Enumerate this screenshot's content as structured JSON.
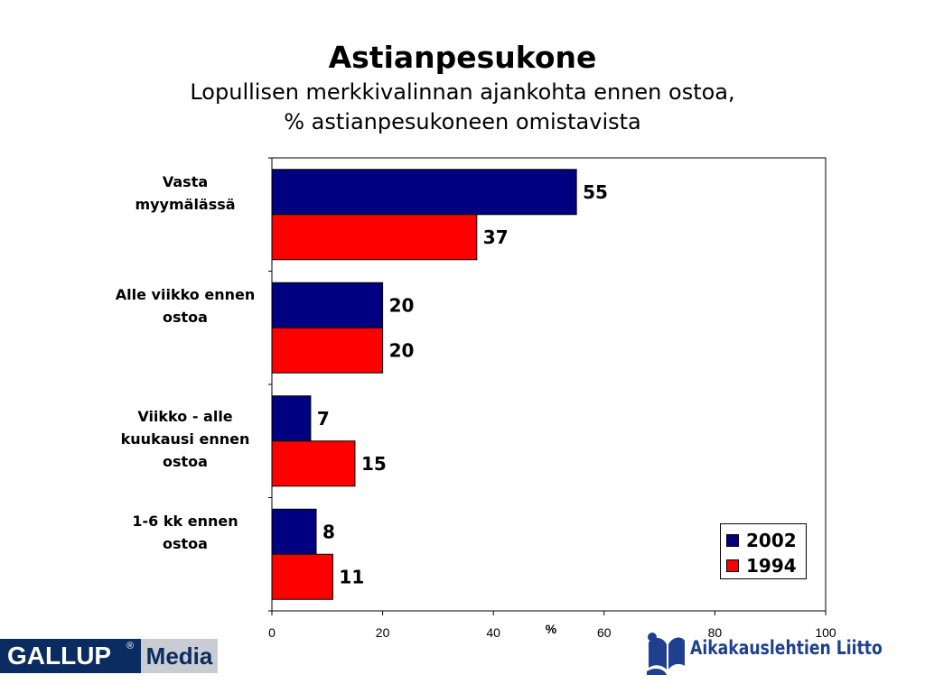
{
  "chart_data": {
    "type": "bar",
    "orientation": "horizontal",
    "title": "Astianpesukone",
    "subtitle": [
      "Lopullisen merkkivalinnan ajankohta ennen ostoa,",
      "% astianpesukoneen omistavista"
    ],
    "categories": [
      [
        "Vasta",
        "myymälässä"
      ],
      [
        "Alle viikko ennen",
        "ostoa"
      ],
      [
        "Viikko - alle",
        "kuukausi ennen",
        "ostoa"
      ],
      [
        "1-6 kk ennen",
        "ostoa"
      ]
    ],
    "series": [
      {
        "name": "2002",
        "color": "#000080",
        "values": [
          55,
          20,
          7,
          8
        ]
      },
      {
        "name": "1994",
        "color": "#ff0000",
        "values": [
          37,
          20,
          15,
          11
        ]
      }
    ],
    "xlabel": "%",
    "xlim": [
      0,
      100
    ],
    "xticks": [
      0,
      20,
      40,
      60,
      80,
      100
    ],
    "grid": false,
    "legend": "bottom-right"
  },
  "logos": {
    "left": {
      "brand": "GALLUP",
      "registered": "®",
      "product": "Media"
    },
    "right": {
      "text": "Aikakauslehtien Liitto",
      "icon": "book-icon"
    }
  }
}
